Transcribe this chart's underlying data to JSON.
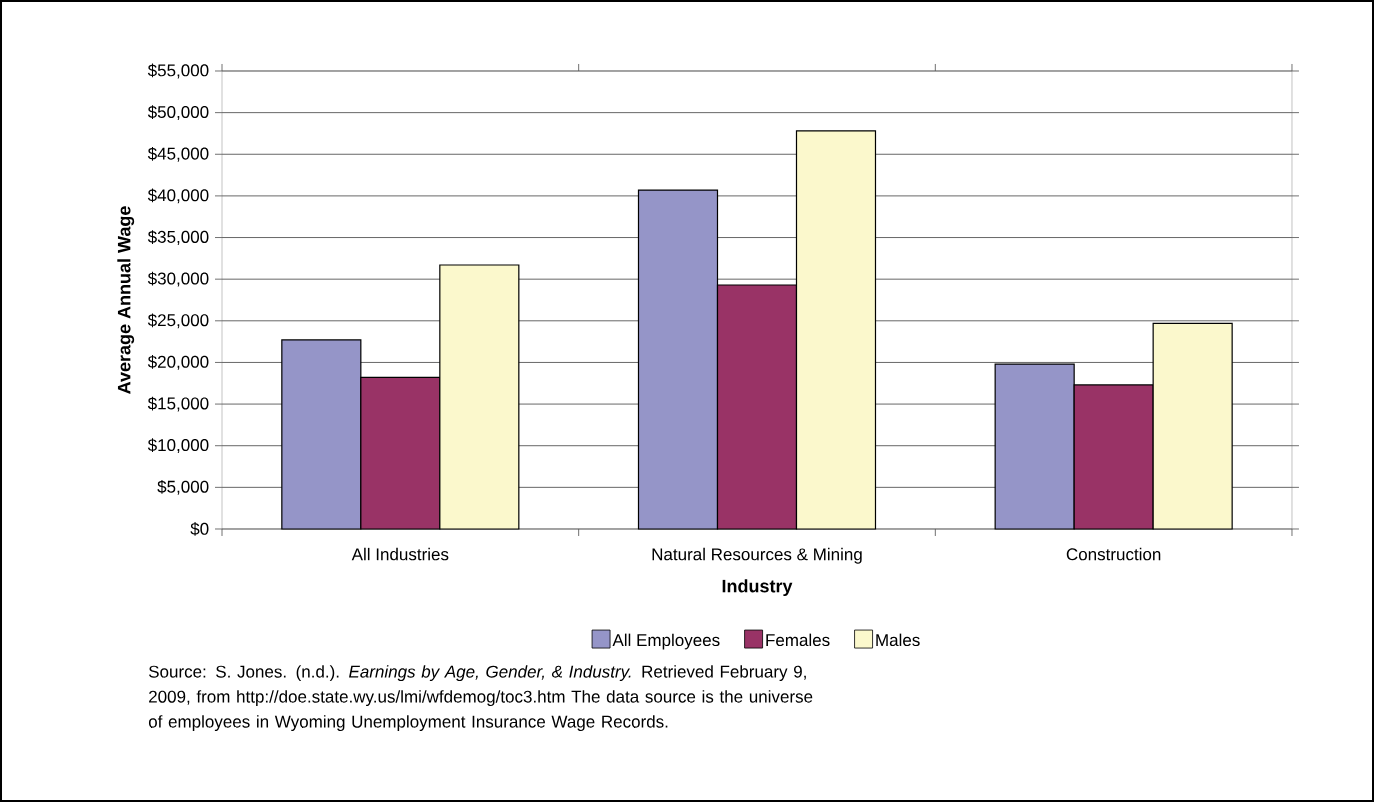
{
  "chart_data": {
    "type": "bar",
    "xlabel": "Industry",
    "ylabel": "Average Annual Wage",
    "categories": [
      "All Industries",
      "Natural Resources & Mining",
      "Construction"
    ],
    "series": [
      {
        "name": "All Employees",
        "color": "#9595c8",
        "values": [
          22700,
          40700,
          19800
        ]
      },
      {
        "name": "Females",
        "color": "#993366",
        "values": [
          18200,
          29300,
          17300
        ]
      },
      {
        "name": "Males",
        "color": "#fbf8cc",
        "values": [
          31700,
          47800,
          24700
        ]
      }
    ],
    "ylim": [
      0,
      55000
    ],
    "yticks": [
      {
        "value": 0,
        "label": "$0"
      },
      {
        "value": 5000,
        "label": "$5,000"
      },
      {
        "value": 10000,
        "label": "$10,000"
      },
      {
        "value": 15000,
        "label": "$15,000"
      },
      {
        "value": 20000,
        "label": "$20,000"
      },
      {
        "value": 25000,
        "label": "$25,000"
      },
      {
        "value": 30000,
        "label": "$30,000"
      },
      {
        "value": 35000,
        "label": "$35,000"
      },
      {
        "value": 40000,
        "label": "$40,000"
      },
      {
        "value": 45000,
        "label": "$45,000"
      },
      {
        "value": 50000,
        "label": "$50,000"
      },
      {
        "value": 55000,
        "label": "$55,000"
      }
    ],
    "grid": "y",
    "legend": "bottom",
    "annotations": [
      "Source: S. Jones. (n.d.). *Earnings by Age, Gender, & Industry.* Retrieved February 9, 2009, from http://doe.state.wy.us/lmi/wfdemog/toc3.htm The data source is the universe of employees in Wyoming Unemployment Insurance Wage Records."
    ]
  }
}
